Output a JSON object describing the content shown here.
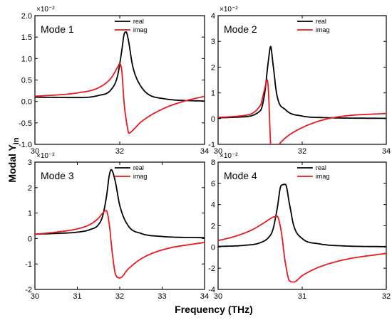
{
  "figure": {
    "ylabel_main": "Modal Y",
    "ylabel_sub": "in",
    "xlabel": "Frequency (THz)"
  },
  "colors": {
    "real": "#000000",
    "imag": "#e8191f"
  },
  "chart_data": [
    {
      "type": "line",
      "title": "Mode 1",
      "multiplier": "×10⁻²",
      "xlim": [
        30,
        34
      ],
      "ylim": [
        -1.0,
        2.0
      ],
      "xticks": [
        "30",
        "32",
        "34"
      ],
      "yticks": [
        "2.0",
        "1.5",
        "1.0",
        "0.5",
        "0.0",
        "-0.5",
        "-1.0"
      ],
      "series": [
        {
          "name": "real",
          "x": [
            30,
            31,
            31.5,
            31.8,
            31.95,
            32.05,
            32.1,
            32.15,
            32.2,
            32.3,
            32.5,
            33,
            34
          ],
          "y": [
            0.1,
            0.09,
            0.14,
            0.28,
            0.6,
            1.2,
            1.55,
            1.62,
            1.45,
            0.85,
            0.35,
            0.07,
            0.01
          ]
        },
        {
          "name": "imag",
          "x": [
            30,
            31,
            31.5,
            31.8,
            31.95,
            32.0,
            32.05,
            32.1,
            32.18,
            32.22,
            32.3,
            32.5,
            33,
            33.5,
            34
          ],
          "y": [
            0.12,
            0.2,
            0.32,
            0.55,
            0.8,
            0.88,
            0.7,
            0.0,
            -0.6,
            -0.74,
            -0.68,
            -0.48,
            -0.18,
            0.0,
            0.12
          ]
        }
      ]
    },
    {
      "type": "line",
      "title": "Mode 2",
      "multiplier": "×10⁻²",
      "xlim": [
        30,
        34
      ],
      "ylim": [
        -1.0,
        4.0
      ],
      "xticks": [
        "30",
        "32",
        "34"
      ],
      "yticks": [
        "4",
        "3",
        "2",
        "1",
        "0",
        "-1"
      ],
      "series": [
        {
          "name": "real",
          "x": [
            30,
            30.5,
            31.0,
            31.1,
            31.2,
            31.25,
            31.3,
            31.4,
            31.6,
            32,
            32.5,
            34
          ],
          "y": [
            0.03,
            0.06,
            0.3,
            0.9,
            2.3,
            2.8,
            2.2,
            0.9,
            0.35,
            0.1,
            0.04,
            0.01
          ]
        },
        {
          "name": "imag",
          "x": [
            30,
            30.5,
            31.0,
            31.1,
            31.17,
            31.2,
            31.25,
            31.3,
            31.4,
            31.6,
            32,
            32.5,
            33,
            34
          ],
          "y": [
            0.05,
            0.1,
            0.5,
            1.1,
            1.5,
            1.0,
            -1.0,
            -1.35,
            -1.1,
            -0.75,
            -0.35,
            -0.05,
            0.1,
            0.2
          ]
        }
      ]
    },
    {
      "type": "line",
      "title": "Mode 3",
      "multiplier": "×10⁻²",
      "xlim": [
        30,
        34
      ],
      "ylim": [
        -2,
        3
      ],
      "xticks": [
        "30",
        "31",
        "32",
        "33",
        "34"
      ],
      "yticks": [
        "3",
        "2",
        "1",
        "0",
        "-1",
        "-2"
      ],
      "series": [
        {
          "name": "real",
          "x": [
            30,
            30.5,
            31,
            31.3,
            31.5,
            31.6,
            31.7,
            31.75,
            31.8,
            31.9,
            32.0,
            32.2,
            32.5,
            33,
            34
          ],
          "y": [
            0.17,
            0.2,
            0.25,
            0.35,
            0.55,
            0.9,
            1.8,
            2.45,
            2.7,
            2.2,
            1.3,
            0.5,
            0.2,
            0.08,
            0.03
          ]
        },
        {
          "name": "imag",
          "x": [
            30,
            30.5,
            31,
            31.3,
            31.5,
            31.6,
            31.68,
            31.75,
            31.82,
            31.9,
            32.0,
            32.2,
            32.5,
            33,
            34
          ],
          "y": [
            0.17,
            0.25,
            0.38,
            0.55,
            0.8,
            1.0,
            1.1,
            0.6,
            -0.5,
            -1.4,
            -1.55,
            -1.2,
            -0.8,
            -0.45,
            -0.15
          ]
        }
      ]
    },
    {
      "type": "line",
      "title": "Mode 4",
      "multiplier": "×10⁻²",
      "xlim": [
        30,
        32
      ],
      "ylim": [
        -4,
        8
      ],
      "xticks": [
        "30",
        "31",
        "32"
      ],
      "yticks": [
        "8",
        "6",
        "4",
        "2",
        "0",
        "-2",
        "-4"
      ],
      "series": [
        {
          "name": "real",
          "x": [
            30,
            30.3,
            30.5,
            30.6,
            30.65,
            30.7,
            30.75,
            30.8,
            30.85,
            30.9,
            31.0,
            31.2,
            31.5,
            32
          ],
          "y": [
            0.05,
            0.15,
            0.4,
            0.9,
            1.6,
            3.5,
            5.8,
            5.9,
            4.0,
            2.0,
            0.8,
            0.3,
            0.1,
            0.03
          ]
        },
        {
          "name": "imag",
          "x": [
            30,
            30.2,
            30.4,
            30.55,
            30.65,
            30.7,
            30.75,
            30.8,
            30.85,
            30.9,
            31.0,
            31.2,
            31.5,
            32
          ],
          "y": [
            0.6,
            1.0,
            1.6,
            2.3,
            2.8,
            2.9,
            1.5,
            -1.5,
            -3.2,
            -3.3,
            -2.7,
            -1.9,
            -1.2,
            -0.6
          ]
        }
      ]
    }
  ]
}
